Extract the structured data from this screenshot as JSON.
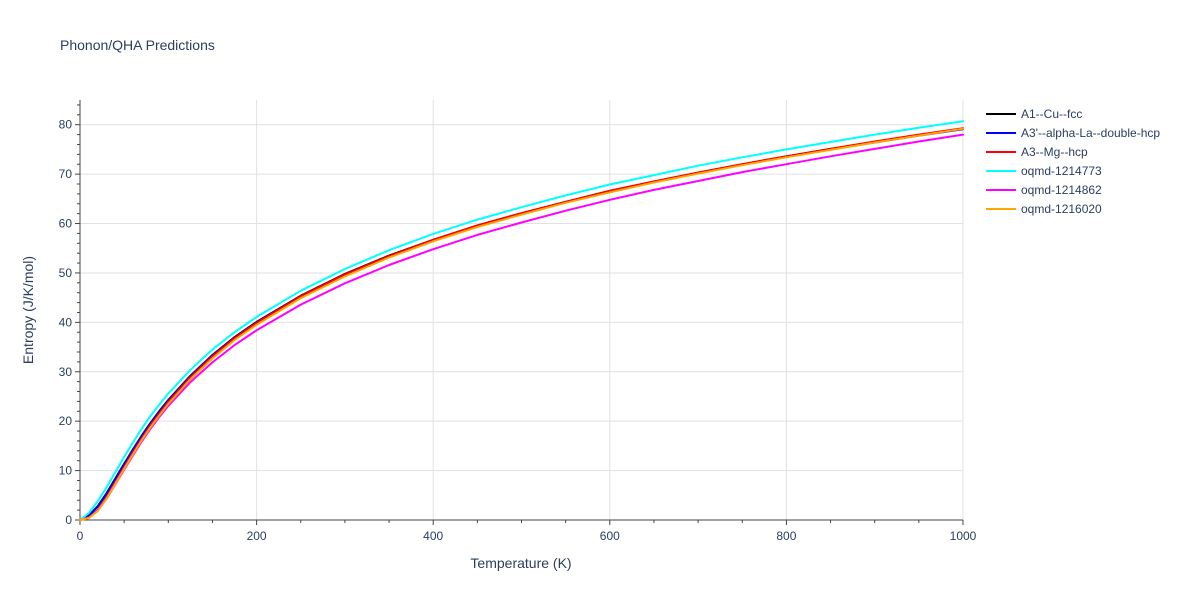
{
  "chart_data": {
    "type": "line",
    "title": "Phonon/QHA Predictions",
    "xlabel": "Temperature (K)",
    "ylabel": "Entropy (J/K/mol)",
    "xlim": [
      0,
      1000
    ],
    "ylim": [
      0,
      85
    ],
    "xticks": [
      0,
      200,
      400,
      600,
      800,
      1000
    ],
    "yticks": [
      0,
      10,
      20,
      30,
      40,
      50,
      60,
      70,
      80
    ],
    "grid": true,
    "legend_position": "top-right",
    "x": [
      0,
      10,
      20,
      30,
      40,
      50,
      60,
      70,
      80,
      90,
      100,
      125,
      150,
      175,
      200,
      250,
      300,
      350,
      400,
      450,
      500,
      550,
      600,
      650,
      700,
      750,
      800,
      850,
      900,
      950,
      1000
    ],
    "series": [
      {
        "name": "A1--Cu--fcc",
        "color": "#000000",
        "values": [
          0,
          0.9,
          2.8,
          5.4,
          8.4,
          11.4,
          14.3,
          17.1,
          19.7,
          22.1,
          24.3,
          29.2,
          33.4,
          37.0,
          40.1,
          45.4,
          49.8,
          53.5,
          56.7,
          59.6,
          62.1,
          64.4,
          66.6,
          68.5,
          70.3,
          72.0,
          73.6,
          75.1,
          76.5,
          77.9,
          79.2
        ]
      },
      {
        "name": "A3'--alpha-La--double-hcp",
        "color": "#0000ff",
        "values": [
          0,
          0.8,
          2.7,
          5.3,
          8.3,
          11.3,
          14.2,
          17.0,
          19.6,
          22.0,
          24.2,
          29.1,
          33.3,
          36.9,
          40.0,
          45.3,
          49.7,
          53.4,
          56.6,
          59.5,
          62.0,
          64.3,
          66.5,
          68.4,
          70.2,
          71.9,
          73.5,
          75.0,
          76.4,
          77.8,
          79.1
        ]
      },
      {
        "name": "A3--Mg--hcp",
        "color": "#ff0000",
        "values": [
          0,
          0.5,
          2.0,
          4.6,
          7.6,
          10.7,
          13.7,
          16.5,
          19.2,
          21.6,
          23.9,
          28.9,
          33.1,
          36.8,
          39.9,
          45.3,
          49.7,
          53.4,
          56.7,
          59.6,
          62.1,
          64.4,
          66.6,
          68.5,
          70.3,
          72.0,
          73.6,
          75.1,
          76.6,
          78.0,
          79.3
        ]
      },
      {
        "name": "oqmd-1214773",
        "color": "#00ffff",
        "values": [
          0,
          1.4,
          3.8,
          6.6,
          9.7,
          12.8,
          15.7,
          18.5,
          21.1,
          23.4,
          25.6,
          30.4,
          34.5,
          38.0,
          41.1,
          46.4,
          50.8,
          54.6,
          57.9,
          60.8,
          63.3,
          65.7,
          67.9,
          69.8,
          71.7,
          73.4,
          75.0,
          76.5,
          78.0,
          79.4,
          80.7
        ]
      },
      {
        "name": "oqmd-1214862",
        "color": "#ff00ff",
        "values": [
          0,
          0.4,
          1.9,
          4.3,
          7.2,
          10.2,
          13.1,
          15.9,
          18.5,
          20.9,
          23.1,
          27.9,
          31.9,
          35.4,
          38.4,
          43.6,
          47.9,
          51.6,
          54.8,
          57.7,
          60.2,
          62.6,
          64.8,
          66.8,
          68.6,
          70.4,
          72.0,
          73.6,
          75.1,
          76.6,
          78.0
        ]
      },
      {
        "name": "oqmd-1216020",
        "color": "#ffa500",
        "values": [
          0,
          0.4,
          1.8,
          4.3,
          7.3,
          10.4,
          13.3,
          16.2,
          18.8,
          21.2,
          23.5,
          28.5,
          32.7,
          36.4,
          39.5,
          44.9,
          49.3,
          53.1,
          56.4,
          59.3,
          61.8,
          64.2,
          66.3,
          68.3,
          70.1,
          71.8,
          73.4,
          74.9,
          76.4,
          77.8,
          79.2
        ]
      }
    ]
  }
}
